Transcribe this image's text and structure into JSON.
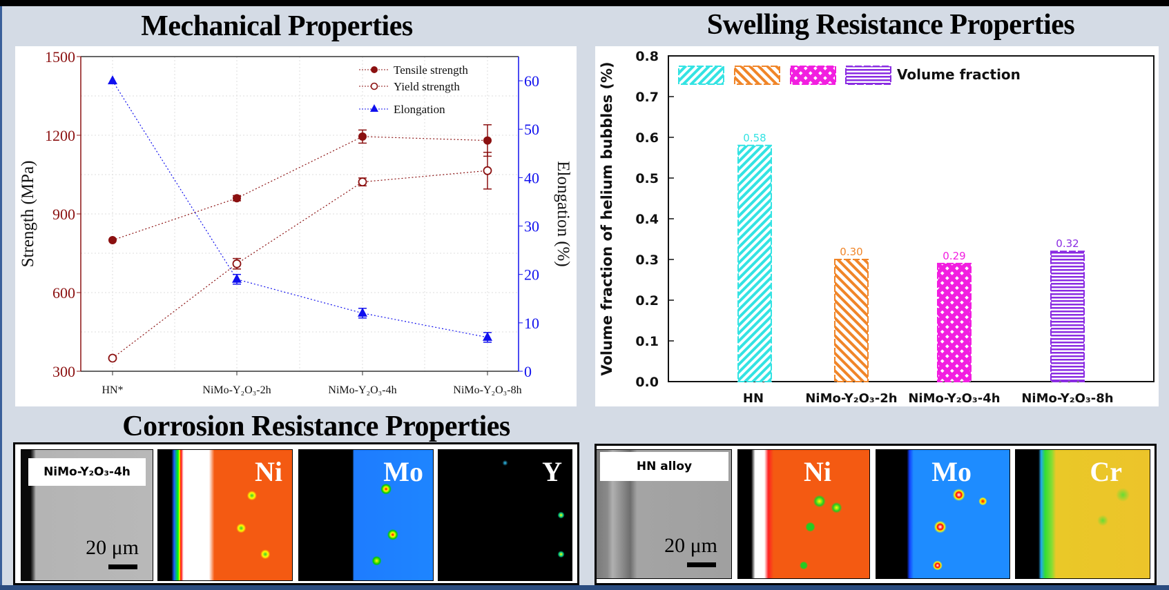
{
  "titles": {
    "mechanical": "Mechanical Properties",
    "swelling": "Swelling Resistance Properties",
    "corrosion": "Corrosion Resistance Properties"
  },
  "colors": {
    "strength": "#8b1010",
    "elongation": "#1010ee",
    "background": "#d4dbe5"
  },
  "chart_data": [
    {
      "type": "line",
      "categories": [
        "HN*",
        "NiMo-Y₂O₃-2h",
        "NiMo-Y₂O₃-4h",
        "NiMo-Y₂O₃-8h"
      ],
      "ylabel": "Strength (MPa)",
      "y2label": "Elongation (%)",
      "ylim": [
        300,
        1500
      ],
      "yticks": [
        300,
        600,
        900,
        1200,
        1500
      ],
      "y2lim": [
        0,
        65
      ],
      "y2ticks": [
        0,
        10,
        20,
        30,
        40,
        50,
        60
      ],
      "grid": true,
      "legend_position": "top-right",
      "series": [
        {
          "name": "Tensile strength",
          "axis": "left",
          "marker": "filled-circle",
          "color": "#8b1010",
          "values": [
            800,
            960,
            1195,
            1180
          ],
          "errors": [
            0,
            10,
            25,
            60
          ]
        },
        {
          "name": "Yield strength",
          "axis": "left",
          "marker": "open-circle",
          "color": "#8b1010",
          "values": [
            350,
            710,
            1022,
            1065
          ],
          "errors": [
            0,
            20,
            15,
            70
          ]
        },
        {
          "name": "Elongation",
          "axis": "right",
          "marker": "triangle",
          "color": "#1010ee",
          "values": [
            60,
            19,
            12,
            7
          ],
          "errors": [
            0,
            1,
            1,
            1
          ]
        }
      ]
    },
    {
      "type": "bar",
      "categories": [
        "HN",
        "NiMo-Y₂O₃-2h",
        "NiMo-Y₂O₃-4h",
        "NiMo-Y₂O₃-8h"
      ],
      "values": [
        0.58,
        0.3,
        0.29,
        0.32
      ],
      "data_labels": [
        "0.58",
        "0.30",
        "0.29",
        "0.32"
      ],
      "bar_colors": [
        "#33e3e3",
        "#f08528",
        "#f21ee0",
        "#8a2be2"
      ],
      "bar_patterns": [
        "diagonal-fine",
        "diagonal-back",
        "crosshatch",
        "horizontal"
      ],
      "ylabel": "Volume fraction of helium bubbles (%)",
      "ylim": [
        0,
        0.8
      ],
      "yticks": [
        "0.0",
        "0.1",
        "0.2",
        "0.3",
        "0.4",
        "0.5",
        "0.6",
        "0.7",
        "0.8"
      ],
      "legend_label": "Volume fraction",
      "legend_position": "top-left"
    }
  ],
  "corrosion": {
    "left": {
      "sample_label": "NiMo-Y₂O₃-4h",
      "scale_label": "20 μm",
      "elements": [
        "Ni",
        "Mo",
        "Y"
      ]
    },
    "right": {
      "sample_label": "HN alloy",
      "scale_label": "20 μm",
      "elements": [
        "Ni",
        "Mo",
        "Cr"
      ]
    }
  }
}
